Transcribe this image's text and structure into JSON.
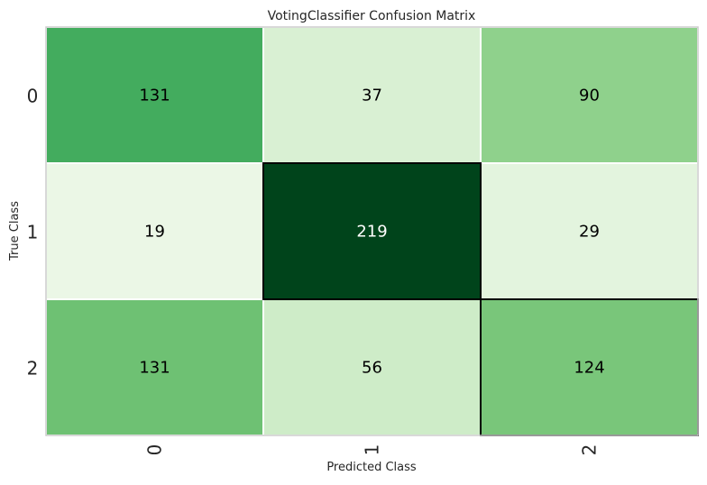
{
  "chart_data": {
    "type": "heatmap",
    "title": "VotingClassifier Confusion Matrix",
    "xlabel": "Predicted Class",
    "ylabel": "True Class",
    "x_tick_labels": [
      "0",
      "1",
      "2"
    ],
    "y_tick_labels": [
      "0",
      "1",
      "2"
    ],
    "values": [
      [
        131,
        37,
        90
      ],
      [
        19,
        219,
        29
      ],
      [
        131,
        56,
        124
      ]
    ],
    "colormap": "Greens",
    "highlight_diagonal_errors": true,
    "colors": {
      "cell_border": "#ffffff",
      "highlight_border": "#000000",
      "axis_frame": "#cccccc",
      "text_dark": "#000000",
      "text_light": "#ffffff",
      "title": "#262626"
    }
  }
}
